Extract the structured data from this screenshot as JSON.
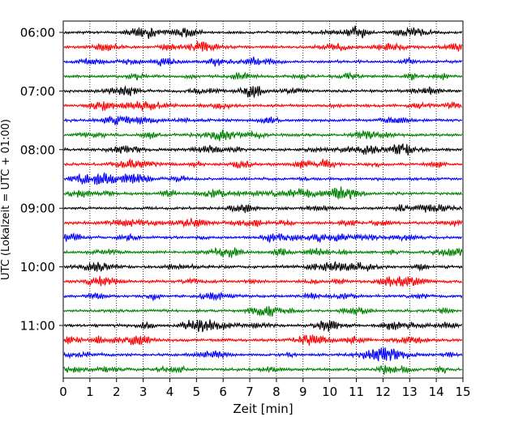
{
  "chart_data": {
    "type": "line",
    "title": "",
    "xlabel": "Zeit  [min]",
    "ylabel": "UTC (Lokalzeit = UTC + 01:00)",
    "xlim": [
      0,
      15
    ],
    "x_ticks": [
      0,
      1,
      2,
      3,
      4,
      5,
      6,
      7,
      8,
      9,
      10,
      11,
      12,
      13,
      14,
      15
    ],
    "x_tick_labels": [
      "0",
      "1",
      "2",
      "3",
      "4",
      "5",
      "6",
      "7",
      "8",
      "9",
      "10",
      "11",
      "12",
      "13",
      "14",
      "15"
    ],
    "y_tick_labels": [
      "06:00",
      "07:00",
      "08:00",
      "09:00",
      "10:00",
      "11:00"
    ],
    "trace_interval_minutes": 15,
    "trace_count": 24,
    "trace_start": "06:00",
    "trace_colors": [
      "#000000",
      "#ff0000",
      "#0000ff",
      "#008000"
    ],
    "grid": "vertical dotted at every minute",
    "legend": "none"
  }
}
